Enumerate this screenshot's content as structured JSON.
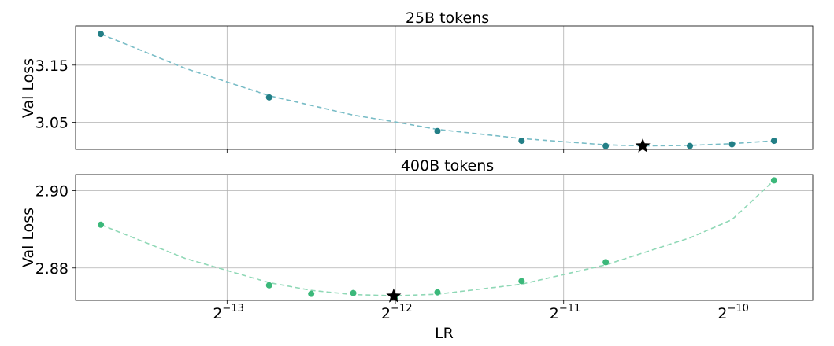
{
  "chart_data": {
    "type": "scatter",
    "xlabel": "LR",
    "x_scale": "log2",
    "x_tick_labels": [
      "2^{-13}",
      "2^{-12}",
      "2^{-11}",
      "2^{-10}"
    ],
    "x_tick_exponents": [
      -13,
      -12,
      -11,
      -10
    ],
    "xlim_log2": [
      -13.9,
      -9.52
    ],
    "grid": true,
    "panels": [
      {
        "title": "25B tokens",
        "ylabel": "Val Loss",
        "ylim": [
          3.0025,
          3.2185
        ],
        "y_ticks": [
          "3.05",
          "3.15"
        ],
        "y_tick_values": [
          3.05,
          3.15
        ],
        "color": "#237f86",
        "fit_color": "#78bcc6",
        "points": [
          {
            "log2_lr": -13.75,
            "loss": 3.2045
          },
          {
            "log2_lr": -12.75,
            "loss": 3.0935
          },
          {
            "log2_lr": -11.75,
            "loss": 3.0345
          },
          {
            "log2_lr": -11.25,
            "loss": 3.0175
          },
          {
            "log2_lr": -10.75,
            "loss": 3.0085
          },
          {
            "log2_lr": -10.25,
            "loss": 3.0085
          },
          {
            "log2_lr": -10.0,
            "loss": 3.0115
          },
          {
            "log2_lr": -9.75,
            "loss": 3.0175
          }
        ],
        "optimum": {
          "log2_lr": -10.53,
          "loss": 3.0085
        },
        "fit_curve": [
          {
            "log2_lr": -13.75,
            "loss": 3.2045
          },
          {
            "log2_lr": -13.25,
            "loss": 3.1445
          },
          {
            "log2_lr": -12.75,
            "loss": 3.0965
          },
          {
            "log2_lr": -12.25,
            "loss": 3.0625
          },
          {
            "log2_lr": -12.0,
            "loss": 3.0505
          },
          {
            "log2_lr": -11.75,
            "loss": 3.0375
          },
          {
            "log2_lr": -11.25,
            "loss": 3.0215
          },
          {
            "log2_lr": -10.75,
            "loss": 3.0105
          },
          {
            "log2_lr": -10.53,
            "loss": 3.0085
          },
          {
            "log2_lr": -10.25,
            "loss": 3.0095
          },
          {
            "log2_lr": -10.0,
            "loss": 3.0125
          },
          {
            "log2_lr": -9.75,
            "loss": 3.0175
          }
        ]
      },
      {
        "title": "400B tokens",
        "ylabel": "Val Loss",
        "ylim": [
          2.8716,
          2.9042
        ],
        "y_ticks": [
          "2.88",
          "2.90"
        ],
        "y_tick_values": [
          2.88,
          2.9
        ],
        "color": "#3bb87a",
        "fit_color": "#8fd8b6",
        "points": [
          {
            "log2_lr": -13.75,
            "loss": 2.8912
          },
          {
            "log2_lr": -12.75,
            "loss": 2.8755
          },
          {
            "log2_lr": -12.5,
            "loss": 2.8733
          },
          {
            "log2_lr": -12.25,
            "loss": 2.8735
          },
          {
            "log2_lr": -12.0,
            "loss": 2.8725
          },
          {
            "log2_lr": -11.75,
            "loss": 2.8737
          },
          {
            "log2_lr": -11.25,
            "loss": 2.8766
          },
          {
            "log2_lr": -10.75,
            "loss": 2.8815
          },
          {
            "log2_lr": -9.75,
            "loss": 2.9027
          }
        ],
        "optimum": {
          "log2_lr": -12.01,
          "loss": 2.8727
        },
        "fit_curve": [
          {
            "log2_lr": -13.75,
            "loss": 2.8912
          },
          {
            "log2_lr": -13.25,
            "loss": 2.8825
          },
          {
            "log2_lr": -12.75,
            "loss": 2.8762
          },
          {
            "log2_lr": -12.5,
            "loss": 2.8742
          },
          {
            "log2_lr": -12.25,
            "loss": 2.8731
          },
          {
            "log2_lr": -12.0,
            "loss": 2.8728
          },
          {
            "log2_lr": -11.75,
            "loss": 2.8732
          },
          {
            "log2_lr": -11.25,
            "loss": 2.8758
          },
          {
            "log2_lr": -10.75,
            "loss": 2.8808
          },
          {
            "log2_lr": -10.25,
            "loss": 2.8878
          },
          {
            "log2_lr": -10.0,
            "loss": 2.8925
          },
          {
            "log2_lr": -9.75,
            "loss": 2.9027
          }
        ]
      }
    ]
  }
}
